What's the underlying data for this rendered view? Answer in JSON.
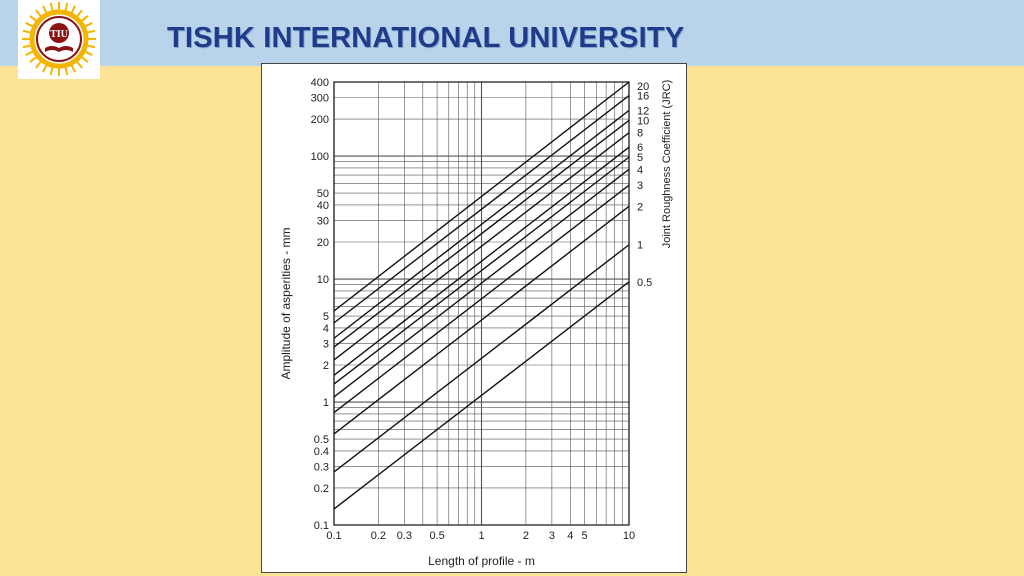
{
  "header": {
    "title": "TISHK INTERNATIONAL UNIVERSITY",
    "logo_text": "TIU"
  },
  "colors": {
    "background": "#fde396",
    "header_band": "#b9d3ea",
    "title": "#1f3c8c",
    "logo_ring": "#f5b400",
    "logo_circle": "#8a1414"
  },
  "chart_data": {
    "type": "line",
    "xlabel": "Length of profile - m",
    "ylabel": "Amplitude of asperities - mm",
    "y2label": "Joint Roughness Coefficient (JRC)",
    "xscale": "log",
    "yscale": "log",
    "xlim": [
      0.1,
      10
    ],
    "ylim": [
      0.1,
      400
    ],
    "x_ticks": [
      0.1,
      0.2,
      0.3,
      0.5,
      1,
      2,
      3,
      4,
      5,
      10
    ],
    "y_ticks": [
      0.1,
      0.2,
      0.3,
      0.4,
      0.5,
      1,
      2,
      3,
      4,
      5,
      10,
      20,
      30,
      40,
      50,
      100,
      200,
      300,
      400
    ],
    "grid": true,
    "series": [
      {
        "name": "20",
        "x": [
          0.1,
          10
        ],
        "y": [
          5.5,
          400
        ]
      },
      {
        "name": "16",
        "x": [
          0.1,
          10
        ],
        "y": [
          4.4,
          310
        ]
      },
      {
        "name": "12",
        "x": [
          0.1,
          10
        ],
        "y": [
          3.3,
          235
        ]
      },
      {
        "name": "10",
        "x": [
          0.1,
          10
        ],
        "y": [
          2.8,
          195
        ]
      },
      {
        "name": "8",
        "x": [
          0.1,
          10
        ],
        "y": [
          2.2,
          155
        ]
      },
      {
        "name": "6",
        "x": [
          0.1,
          10
        ],
        "y": [
          1.65,
          118
        ]
      },
      {
        "name": "5",
        "x": [
          0.1,
          10
        ],
        "y": [
          1.4,
          98
        ]
      },
      {
        "name": "4",
        "x": [
          0.1,
          10
        ],
        "y": [
          1.1,
          78
        ]
      },
      {
        "name": "3",
        "x": [
          0.1,
          10
        ],
        "y": [
          0.82,
          58
        ]
      },
      {
        "name": "2",
        "x": [
          0.1,
          10
        ],
        "y": [
          0.55,
          39
        ]
      },
      {
        "name": "1",
        "x": [
          0.1,
          10
        ],
        "y": [
          0.27,
          19
        ]
      },
      {
        "name": "0.5",
        "x": [
          0.1,
          10
        ],
        "y": [
          0.135,
          9.5
        ]
      }
    ]
  }
}
